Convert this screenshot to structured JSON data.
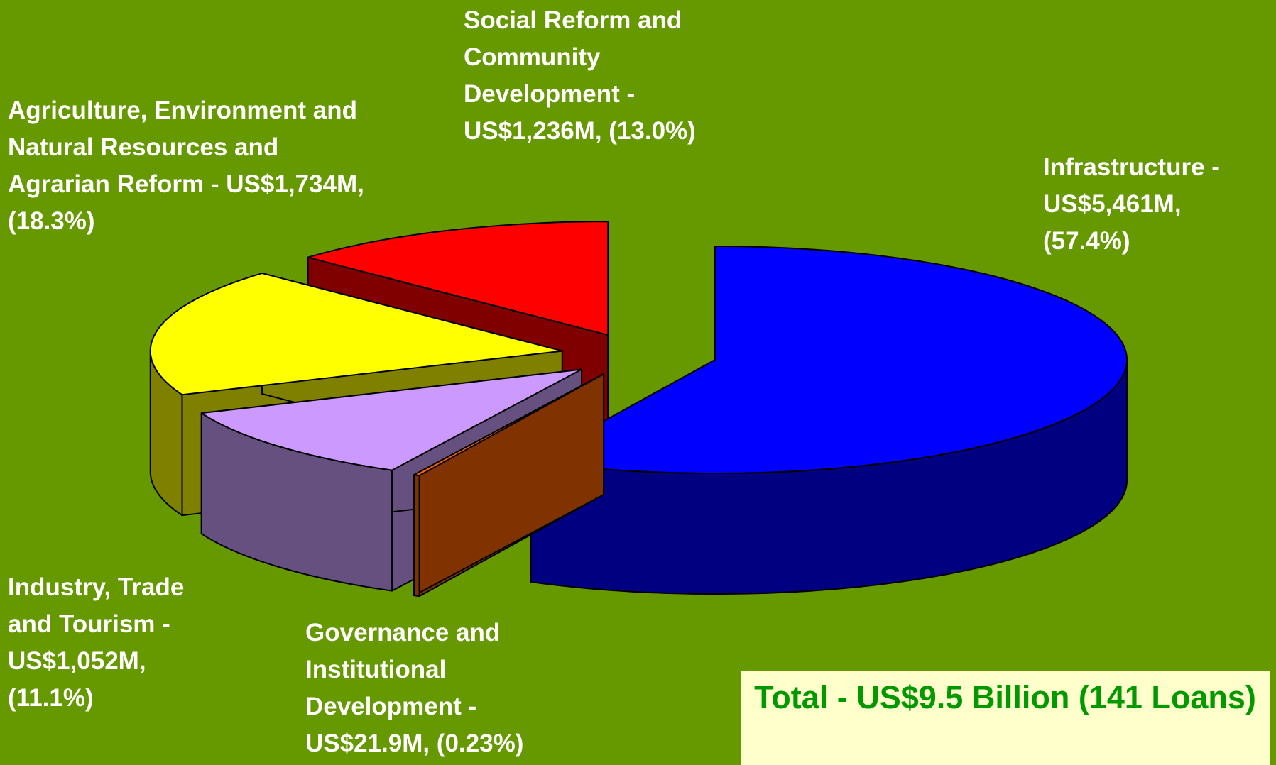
{
  "chart_data": {
    "type": "pie3d",
    "categories": [
      "Infrastructure",
      "Governance and Institutional Development",
      "Industry, Trade and Tourism",
      "Agriculture, Environment and Natural Resources and Agrarian Reform",
      "Social Reform and Community Development"
    ],
    "values": [
      57.4,
      0.23,
      11.1,
      18.3,
      13.0
    ],
    "value_labels": [
      "Infrastructure - US$5,461M, (57.4%)",
      "Governance and Institutional Development - US$21.9M, (0.23%)",
      "Industry, Trade and Tourism - US$1,052M, (11.1%)",
      "Agriculture, Environment and Natural Resources and Agrarian Reform - US$1,734M, (18.3%)",
      "Social Reform and Community Development - US$1,236M, (13.0%)"
    ],
    "colors": [
      "#0000ff",
      "#ff6600",
      "#cc99ff",
      "#ffff00",
      "#ff0000"
    ],
    "side_colors": [
      "#000080",
      "#803300",
      "#665080",
      "#808000",
      "#800000"
    ],
    "annotation": "Total - US$9.5 Billion (141 Loans)"
  }
}
